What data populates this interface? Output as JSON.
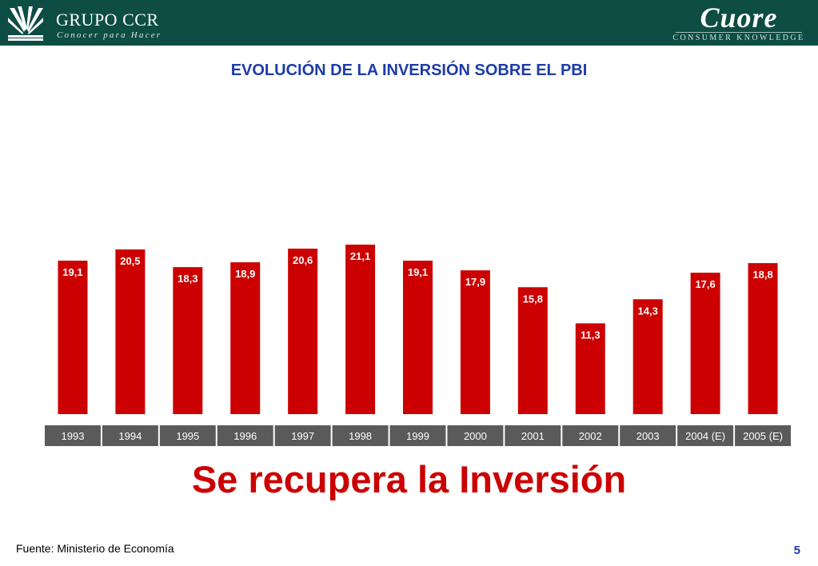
{
  "header": {
    "brand_title": "GRUPO CCR",
    "brand_subtitle": "Conocer para Hacer",
    "partner_logo": "Cuore",
    "partner_subtitle": "CONSUMER KNOWLEDGE",
    "background_color": "#0d4d43"
  },
  "slide": {
    "title": "EVOLUCIÓN DE LA INVERSIÓN SOBRE EL PBI",
    "tagline": "Se recupera la Inversión",
    "source": "Fuente: Ministerio de Economía",
    "page_number": "5"
  },
  "chart_data": {
    "type": "bar",
    "title": "",
    "xlabel": "",
    "ylabel": "",
    "categories": [
      "1993",
      "1994",
      "1995",
      "1996",
      "1997",
      "1998",
      "1999",
      "2000",
      "2001",
      "2002",
      "2003",
      "2004 (E)",
      "2005 (E)"
    ],
    "values": [
      19.1,
      20.5,
      18.3,
      18.9,
      20.6,
      21.1,
      19.1,
      17.9,
      15.8,
      11.3,
      14.3,
      17.6,
      18.8
    ],
    "data_labels": [
      "19,1",
      "20,5",
      "18,3",
      "18,9",
      "20,6",
      "21,1",
      "19,1",
      "17,9",
      "15,8",
      "11,3",
      "14,3",
      "17,6",
      "18,8"
    ],
    "ylim": [
      0,
      21.1
    ],
    "grid": false,
    "bar_color": "#cc0000",
    "axis_label_bg": "#5a5a5a"
  }
}
